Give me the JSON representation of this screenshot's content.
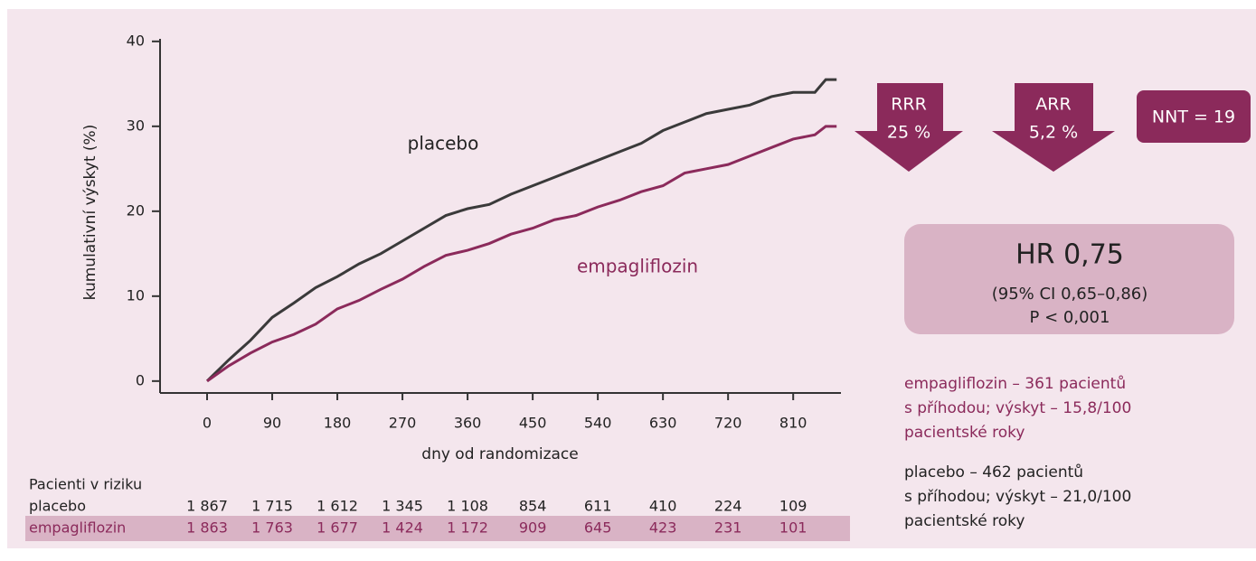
{
  "chart_data": {
    "type": "line",
    "x_label": "dny od randomizace",
    "y_label": "kumulativní výskyt (%)",
    "x": [
      0,
      30,
      60,
      90,
      120,
      150,
      180,
      210,
      240,
      270,
      300,
      330,
      360,
      390,
      420,
      450,
      480,
      510,
      540,
      570,
      600,
      630,
      660,
      690,
      720,
      750,
      780,
      810,
      840,
      855,
      870
    ],
    "series": [
      {
        "name": "placebo",
        "color": "#3a3a3a",
        "values": [
          0,
          2.5,
          4.8,
          7.5,
          9.2,
          11,
          12.3,
          13.8,
          15,
          16.5,
          18,
          19.5,
          20.3,
          20.8,
          22,
          23,
          24,
          25,
          26,
          27,
          28,
          29.5,
          30.5,
          31.5,
          32,
          32.5,
          33.5,
          34,
          34,
          35.5,
          35.5
        ]
      },
      {
        "name": "empagliflozin",
        "color": "#8b2a5b",
        "values": [
          0,
          1.8,
          3.3,
          4.6,
          5.5,
          6.7,
          8.5,
          9.5,
          10.8,
          12,
          13.5,
          14.8,
          15.4,
          16.2,
          17.3,
          18,
          19,
          19.5,
          20.5,
          21.3,
          22.3,
          23,
          24.5,
          25,
          25.5,
          26.5,
          27.5,
          28.5,
          29,
          30,
          30
        ]
      }
    ],
    "xlim": [
      -65,
      876
    ],
    "xticks": [
      0,
      90,
      180,
      270,
      360,
      450,
      540,
      630,
      720,
      810
    ],
    "ylim": [
      -1.4,
      40.3
    ],
    "yticks": [
      0,
      10,
      20,
      30,
      40
    ]
  },
  "risk_table": {
    "title": "Pacienti v riziku",
    "rows": [
      {
        "label": "placebo",
        "cells": [
          "1 867",
          "1 715",
          "1 612",
          "1 345",
          "1 108",
          "854",
          "611",
          "410",
          "224",
          "109"
        ]
      },
      {
        "label": "empagliflozin",
        "cells": [
          "1 863",
          "1 763",
          "1 677",
          "1 424",
          "1 172",
          "909",
          "645",
          "423",
          "231",
          "101"
        ]
      }
    ]
  },
  "badges": [
    {
      "title": "RRR",
      "value": "25 %"
    },
    {
      "title": "ARR",
      "value": "5,2 %"
    },
    {
      "title": "NNT = 19"
    }
  ],
  "hr_box": {
    "title": "HR 0,75",
    "ci": "(95% CI 0,65–0,86)",
    "p": "P < 0,001"
  },
  "notes": [
    {
      "lines": [
        "empagliflozin – 361 pacientů",
        "s příhodou; výskyt – 15,8/100",
        "pacientské roky"
      ]
    },
    {
      "lines": [
        "placebo – 462 pacientů",
        "s příhodou; výskyt – 21,0/100",
        "pacientské roky"
      ]
    }
  ]
}
